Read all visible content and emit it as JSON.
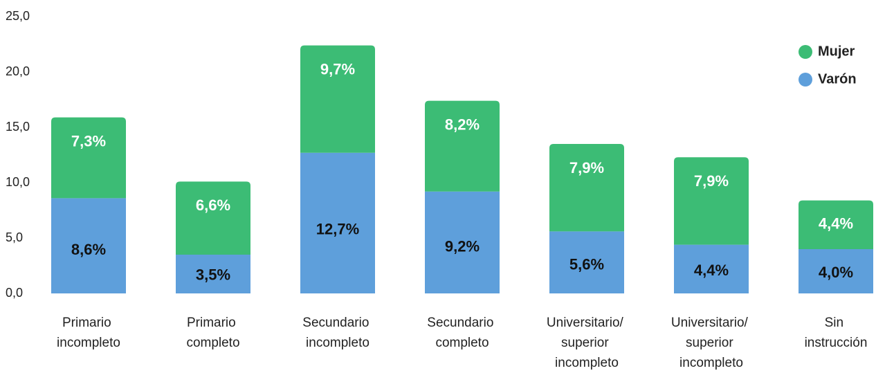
{
  "chart_data": {
    "type": "stacked_bar",
    "categories": [
      "Primario incompleto",
      "Primario completo",
      "Secundario incompleto",
      "Secundario completo",
      "Universitario/ superior incompleto",
      "Universitario/ superior incompleto",
      "Sin instrucción"
    ],
    "series": [
      {
        "name": "Varón",
        "color": "#5e9fdb",
        "values": [
          8.6,
          3.5,
          12.7,
          9.2,
          5.6,
          4.4,
          4.0
        ],
        "value_labels": [
          "8,6%",
          "3,5%",
          "12,7%",
          "9,2%",
          "5,6%",
          "4,4%",
          "4,0%"
        ]
      },
      {
        "name": "Mujer",
        "color": "#3cbc75",
        "values": [
          7.3,
          6.6,
          9.7,
          8.2,
          7.9,
          7.9,
          4.4
        ],
        "value_labels": [
          "7,3%",
          "6,6%",
          "9,7%",
          "8,2%",
          "7,9%",
          "7,9%",
          "4,4%"
        ]
      }
    ],
    "ylim": [
      0,
      25
    ],
    "yticks": [
      {
        "value": 0,
        "label": "0,0"
      },
      {
        "value": 5,
        "label": "5,0"
      },
      {
        "value": 10,
        "label": "10,0"
      },
      {
        "value": 15,
        "label": "15,0"
      },
      {
        "value": 20,
        "label": "20,0"
      },
      {
        "value": 25,
        "label": "25,0"
      }
    ],
    "legend": "top-right"
  }
}
